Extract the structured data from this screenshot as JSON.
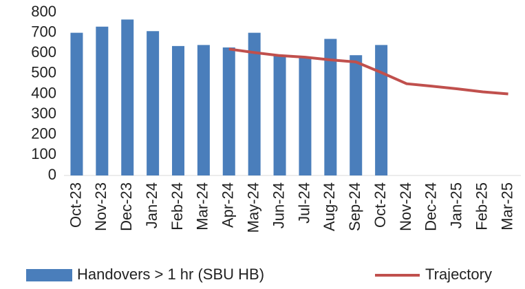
{
  "chart_data": {
    "type": "bar",
    "categories": [
      "Oct-23",
      "Nov-23",
      "Dec-23",
      "Jan-24",
      "Feb-24",
      "Mar-24",
      "Apr-24",
      "May-24",
      "Jun-24",
      "Jul-24",
      "Aug-24",
      "Sep-24",
      "Oct-24",
      "Nov-24",
      "Dec-24",
      "Jan-25",
      "Feb-25",
      "Mar-25"
    ],
    "series": [
      {
        "name": "Handovers > 1 hr (SBU HB)",
        "type": "bar",
        "color": "#4a7ebb",
        "values": [
          700,
          730,
          765,
          708,
          635,
          640,
          628,
          700,
          590,
          580,
          670,
          590,
          640,
          null,
          null,
          null,
          null,
          null
        ]
      },
      {
        "name": "Trajectory",
        "type": "line",
        "color": "#c0504d",
        "values": [
          null,
          null,
          null,
          null,
          null,
          null,
          620,
          603,
          588,
          580,
          567,
          557,
          505,
          450,
          438,
          425,
          410,
          400
        ]
      }
    ],
    "ylim": [
      0,
      800
    ],
    "yticks": [
      0,
      100,
      200,
      300,
      400,
      500,
      600,
      700,
      800
    ],
    "grid": false,
    "legend": "bottom"
  }
}
